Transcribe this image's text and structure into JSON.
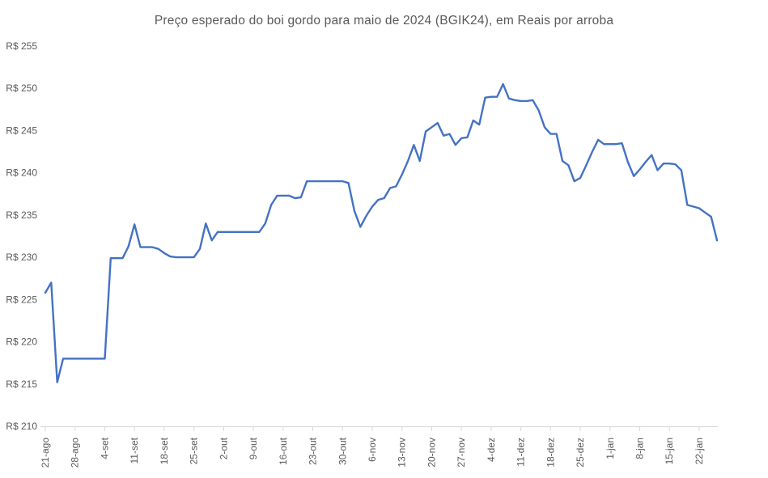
{
  "chart_data": {
    "type": "line",
    "title": "Preço esperado do boi gordo para maio de 2024 (BGIK24), em Reais por arroba",
    "ylabel": "",
    "xlabel": "",
    "ylim": [
      210,
      255
    ],
    "y_tick_step": 5,
    "y_tick_prefix": "R$ ",
    "y_tick_labels": [
      "R$ 255",
      "R$ 250",
      "R$ 245",
      "R$ 240",
      "R$ 235",
      "R$ 230",
      "R$ 225",
      "R$ 220",
      "R$ 215",
      "R$ 210"
    ],
    "x_tick_labels": [
      "21-ago",
      "28-ago",
      "4-set",
      "11-set",
      "18-set",
      "25-set",
      "2-out",
      "9-out",
      "16-out",
      "23-out",
      "30-out",
      "6-nov",
      "13-nov",
      "20-nov",
      "27-nov",
      "4-dez",
      "11-dez",
      "18-dez",
      "25-dez",
      "1-jan",
      "8-jan",
      "15-jan",
      "22-jan"
    ],
    "points_per_tick": 5,
    "grid": false,
    "legend": "none",
    "colors": {
      "line": "#4472C4",
      "axis": "#D9D9D9",
      "text": "#595959",
      "background": "#FFFFFF"
    },
    "series": [
      {
        "name": "BGIK24",
        "values": [
          225.8,
          227.0,
          215.2,
          218.0,
          218.0,
          218.0,
          218.0,
          218.0,
          218.0,
          218.0,
          218.0,
          229.9,
          229.9,
          229.9,
          231.3,
          233.9,
          231.2,
          231.2,
          231.2,
          231.0,
          230.5,
          230.1,
          230.0,
          230.0,
          230.0,
          230.0,
          231.0,
          234.0,
          232.0,
          233.0,
          233.0,
          233.0,
          233.0,
          233.0,
          233.0,
          233.0,
          233.0,
          234.0,
          236.2,
          237.3,
          237.3,
          237.3,
          237.0,
          237.1,
          239.0,
          239.0,
          239.0,
          239.0,
          239.0,
          239.0,
          239.0,
          238.8,
          235.5,
          233.6,
          234.9,
          236.0,
          236.8,
          237.0,
          238.2,
          238.4,
          239.8,
          241.4,
          243.3,
          241.4,
          244.9,
          245.4,
          245.9,
          244.4,
          244.6,
          243.3,
          244.1,
          244.2,
          246.2,
          245.7,
          248.9,
          249.0,
          249.0,
          250.5,
          248.8,
          248.6,
          248.5,
          248.5,
          248.6,
          247.4,
          245.4,
          244.6,
          244.6,
          241.4,
          240.9,
          239.0,
          239.4,
          240.9,
          242.5,
          243.9,
          243.4,
          243.4,
          243.4,
          243.5,
          241.3,
          239.6,
          240.4,
          241.3,
          242.1,
          240.3,
          241.1,
          241.1,
          241.0,
          240.3,
          236.2,
          236.0,
          235.8,
          235.3,
          234.8,
          232.0
        ]
      }
    ]
  }
}
